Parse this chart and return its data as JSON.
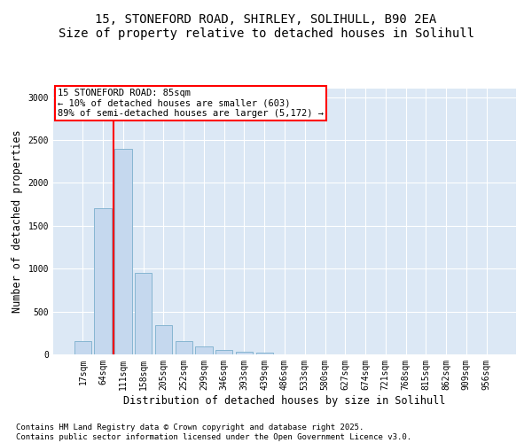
{
  "title_line1": "15, STONEFORD ROAD, SHIRLEY, SOLIHULL, B90 2EA",
  "title_line2": "Size of property relative to detached houses in Solihull",
  "xlabel": "Distribution of detached houses by size in Solihull",
  "ylabel": "Number of detached properties",
  "categories": [
    "17sqm",
    "64sqm",
    "111sqm",
    "158sqm",
    "205sqm",
    "252sqm",
    "299sqm",
    "346sqm",
    "393sqm",
    "439sqm",
    "486sqm",
    "533sqm",
    "580sqm",
    "627sqm",
    "674sqm",
    "721sqm",
    "768sqm",
    "815sqm",
    "862sqm",
    "909sqm",
    "956sqm"
  ],
  "values": [
    150,
    1700,
    2400,
    950,
    340,
    155,
    90,
    50,
    30,
    20,
    5,
    5,
    3,
    3,
    2,
    2,
    2,
    1,
    1,
    1,
    1
  ],
  "bar_color": "#c5d8ee",
  "bar_edge_color": "#7aaecc",
  "vline_x_index": 1.5,
  "vline_color": "red",
  "annotation_text": "15 STONEFORD ROAD: 85sqm\n← 10% of detached houses are smaller (603)\n89% of semi-detached houses are larger (5,172) →",
  "annotation_box_color": "white",
  "annotation_box_edge_color": "red",
  "ylim": [
    0,
    3100
  ],
  "yticks": [
    0,
    500,
    1000,
    1500,
    2000,
    2500,
    3000
  ],
  "background_color": "#dce8f5",
  "footer_line1": "Contains HM Land Registry data © Crown copyright and database right 2025.",
  "footer_line2": "Contains public sector information licensed under the Open Government Licence v3.0.",
  "title_fontsize": 10,
  "axis_label_fontsize": 8.5,
  "tick_fontsize": 7,
  "annotation_fontsize": 7.5,
  "footer_fontsize": 6.5
}
